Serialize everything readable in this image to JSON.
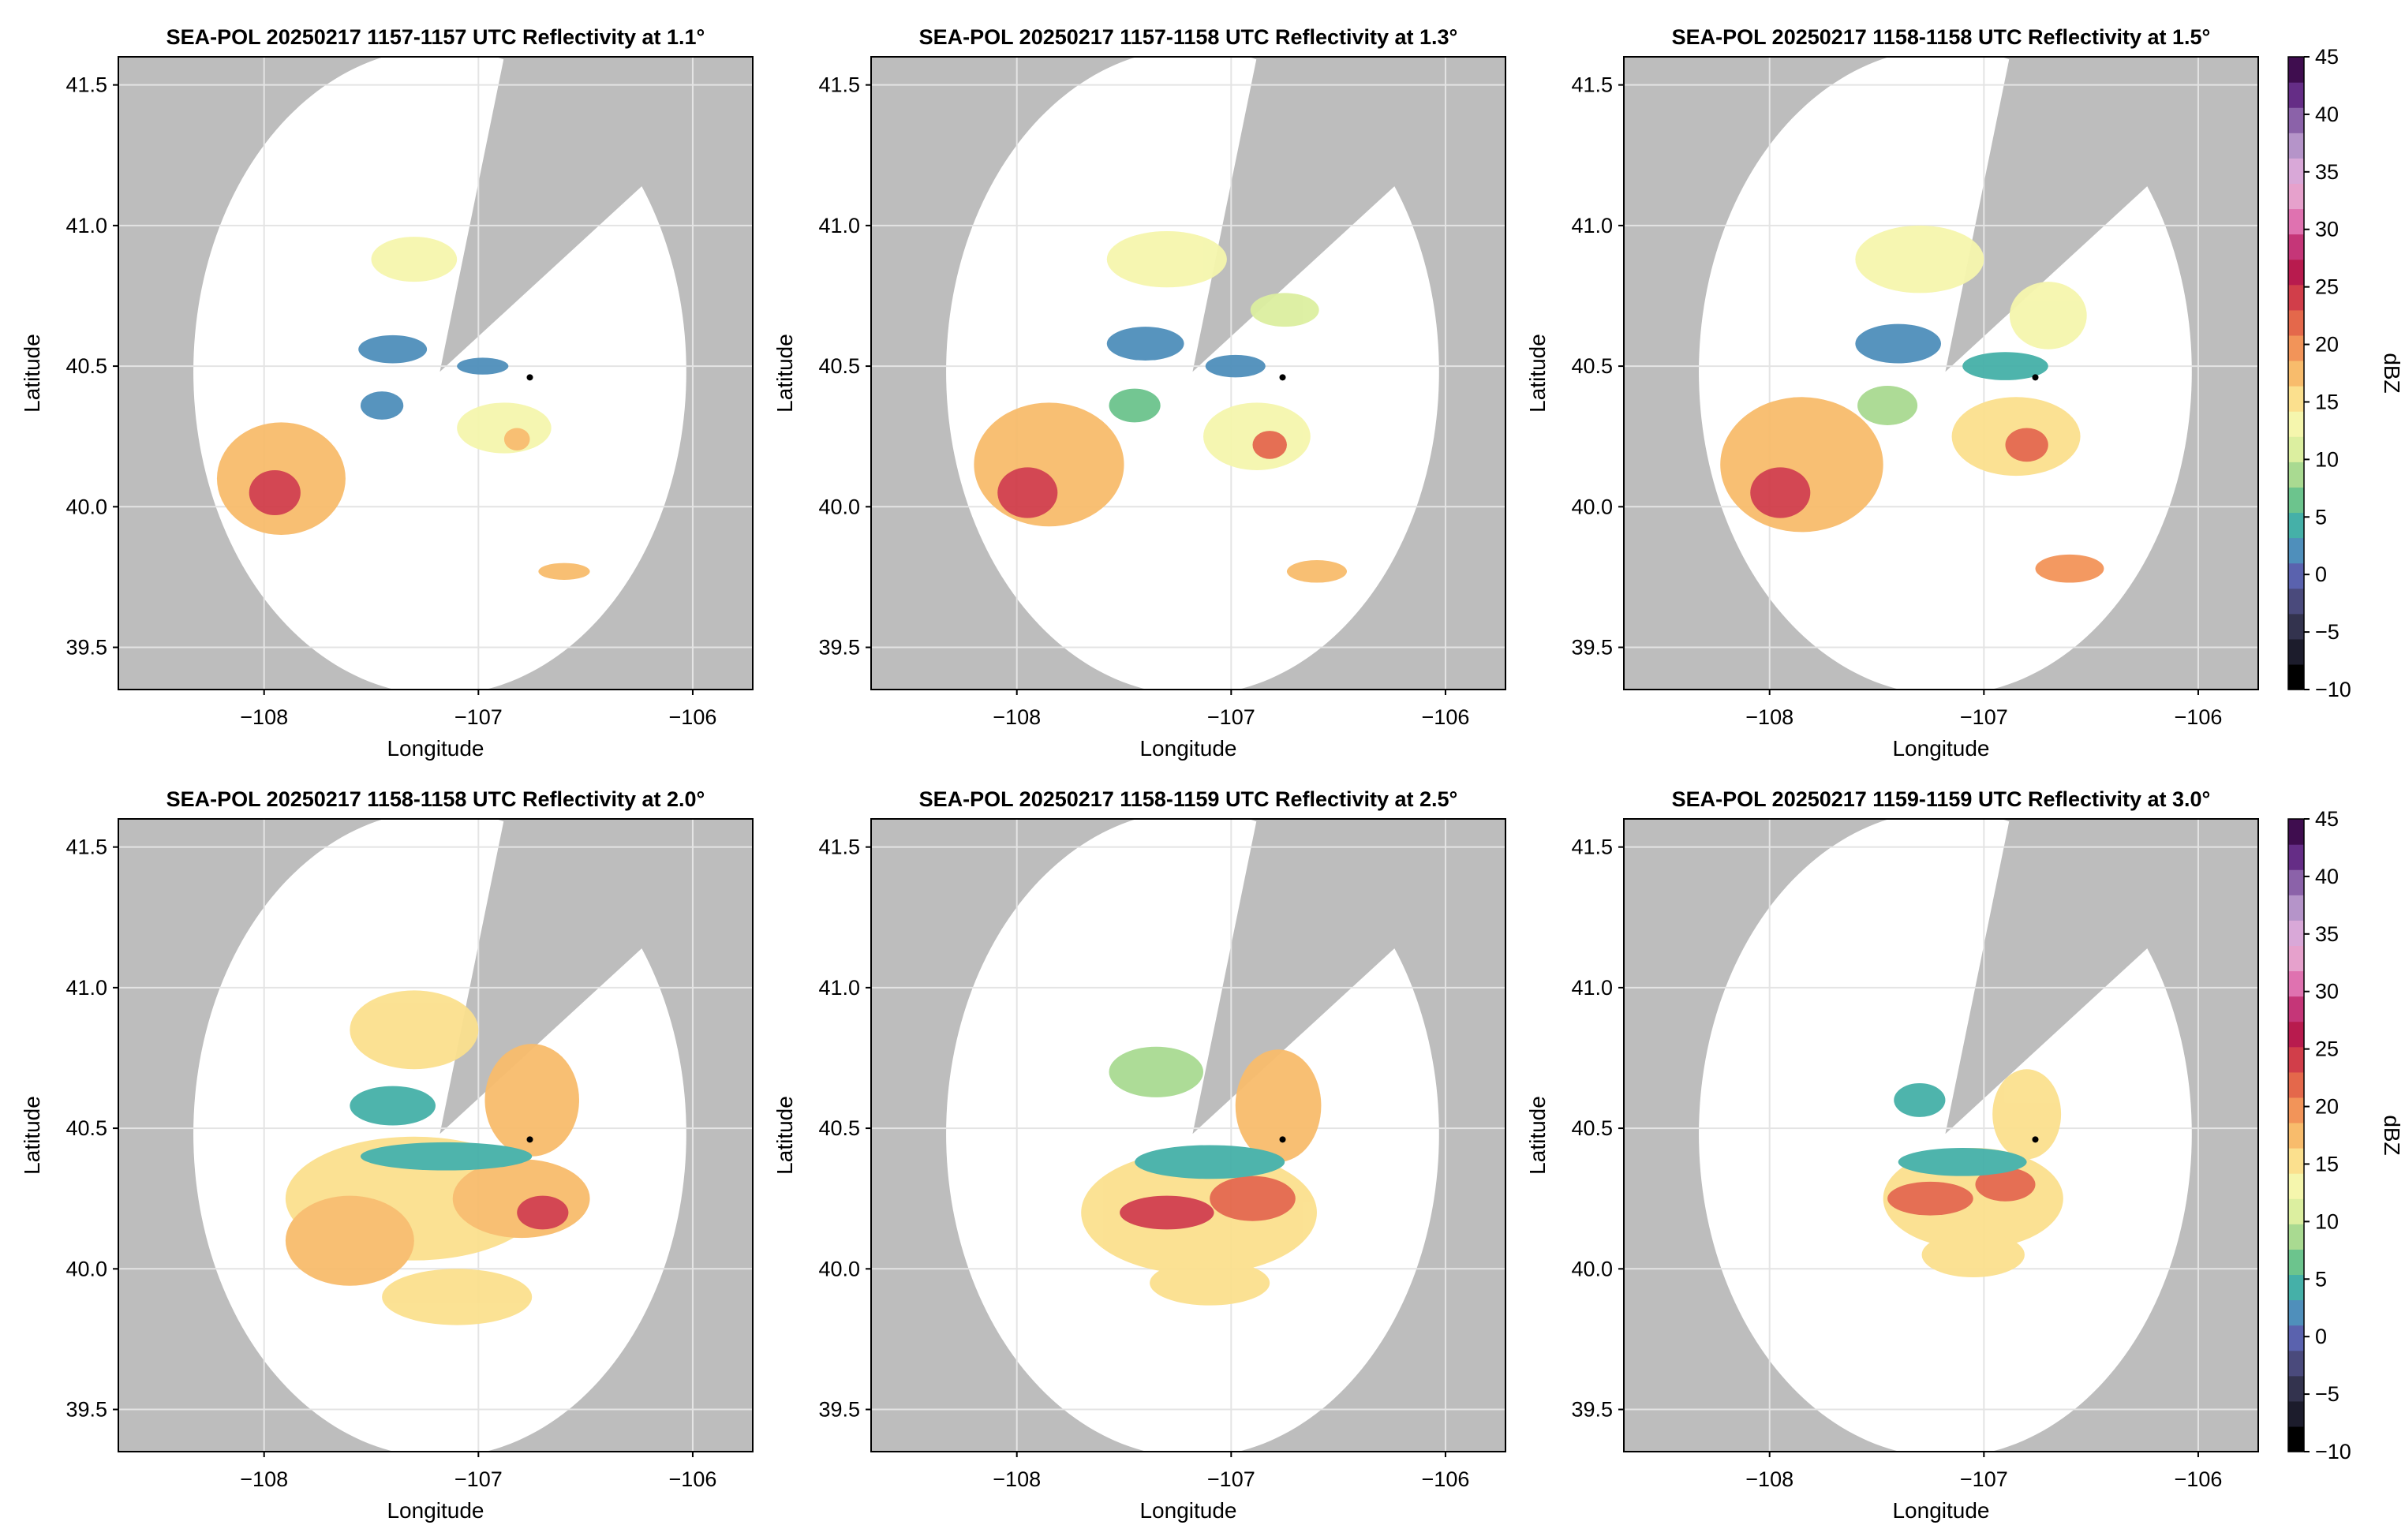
{
  "chart_data": [
    {
      "type": "heatmap",
      "title": "SEA-POL 20250217 1157-1157 UTC Reflectivity at 1.1°",
      "xlabel": "Longitude",
      "ylabel": "Latitude",
      "xlim": [
        -108.68,
        -105.72
      ],
      "ylim": [
        39.35,
        41.6
      ],
      "xticks": [
        "−108",
        "−107",
        "−106"
      ],
      "xtick_values": [
        -108,
        -107,
        -106
      ],
      "yticks": [
        "39.5",
        "40.0",
        "40.5",
        "41.0",
        "41.5"
      ],
      "ytick_values": [
        39.5,
        40.0,
        40.5,
        41.0,
        41.5
      ],
      "grid": true,
      "radar_center": [
        -107.18,
        40.48
      ],
      "radar_range_deg": 1.15,
      "blocked_sector_deg": [
        15,
        55
      ],
      "marker": [
        -106.76,
        40.46
      ],
      "echoes": [
        {
          "lon": -107.92,
          "lat": 40.1,
          "rx": 0.3,
          "ry": 0.2,
          "dbz": 18
        },
        {
          "lon": -107.95,
          "lat": 40.05,
          "rx": 0.12,
          "ry": 0.08,
          "dbz": 24
        },
        {
          "lon": -106.88,
          "lat": 40.28,
          "rx": 0.22,
          "ry": 0.09,
          "dbz": 12
        },
        {
          "lon": -106.82,
          "lat": 40.24,
          "rx": 0.06,
          "ry": 0.04,
          "dbz": 18
        },
        {
          "lon": -107.4,
          "lat": 40.56,
          "rx": 0.16,
          "ry": 0.05,
          "dbz": 2
        },
        {
          "lon": -107.45,
          "lat": 40.36,
          "rx": 0.1,
          "ry": 0.05,
          "dbz": 3
        },
        {
          "lon": -107.3,
          "lat": 40.88,
          "rx": 0.2,
          "ry": 0.08,
          "dbz": 12
        },
        {
          "lon": -106.6,
          "lat": 39.77,
          "rx": 0.12,
          "ry": 0.03,
          "dbz": 18
        },
        {
          "lon": -106.98,
          "lat": 40.5,
          "rx": 0.12,
          "ry": 0.03,
          "dbz": 2
        }
      ]
    },
    {
      "type": "heatmap",
      "title": "SEA-POL 20250217 1157-1158 UTC Reflectivity at 1.3°",
      "xlabel": "Longitude",
      "ylabel": "Latitude",
      "xlim": [
        -108.68,
        -105.72
      ],
      "ylim": [
        39.35,
        41.6
      ],
      "xticks": [
        "−108",
        "−107",
        "−106"
      ],
      "xtick_values": [
        -108,
        -107,
        -106
      ],
      "yticks": [
        "39.5",
        "40.0",
        "40.5",
        "41.0",
        "41.5"
      ],
      "ytick_values": [
        39.5,
        40.0,
        40.5,
        41.0,
        41.5
      ],
      "grid": true,
      "radar_center": [
        -107.18,
        40.48
      ],
      "radar_range_deg": 1.15,
      "blocked_sector_deg": [
        15,
        55
      ],
      "marker": [
        -106.76,
        40.46
      ],
      "echoes": [
        {
          "lon": -107.85,
          "lat": 40.15,
          "rx": 0.35,
          "ry": 0.22,
          "dbz": 17
        },
        {
          "lon": -107.95,
          "lat": 40.05,
          "rx": 0.14,
          "ry": 0.09,
          "dbz": 24
        },
        {
          "lon": -106.88,
          "lat": 40.25,
          "rx": 0.25,
          "ry": 0.12,
          "dbz": 14
        },
        {
          "lon": -106.82,
          "lat": 40.22,
          "rx": 0.08,
          "ry": 0.05,
          "dbz": 22
        },
        {
          "lon": -107.4,
          "lat": 40.58,
          "rx": 0.18,
          "ry": 0.06,
          "dbz": 3
        },
        {
          "lon": -107.3,
          "lat": 40.88,
          "rx": 0.28,
          "ry": 0.1,
          "dbz": 13
        },
        {
          "lon": -106.75,
          "lat": 40.7,
          "rx": 0.16,
          "ry": 0.06,
          "dbz": 11
        },
        {
          "lon": -106.6,
          "lat": 39.77,
          "rx": 0.14,
          "ry": 0.04,
          "dbz": 18
        },
        {
          "lon": -107.45,
          "lat": 40.36,
          "rx": 0.12,
          "ry": 0.06,
          "dbz": 6
        },
        {
          "lon": -106.98,
          "lat": 40.5,
          "rx": 0.14,
          "ry": 0.04,
          "dbz": 3
        }
      ]
    },
    {
      "type": "heatmap",
      "title": "SEA-POL 20250217 1158-1158 UTC Reflectivity at 1.5°",
      "xlabel": "Longitude",
      "ylabel": "Latitude",
      "xlim": [
        -108.68,
        -105.72
      ],
      "ylim": [
        39.35,
        41.6
      ],
      "xticks": [
        "−108",
        "−107",
        "−106"
      ],
      "xtick_values": [
        -108,
        -107,
        -106
      ],
      "yticks": [
        "39.5",
        "40.0",
        "40.5",
        "41.0",
        "41.5"
      ],
      "ytick_values": [
        39.5,
        40.0,
        40.5,
        41.0,
        41.5
      ],
      "grid": true,
      "radar_center": [
        -107.18,
        40.48
      ],
      "radar_range_deg": 1.15,
      "blocked_sector_deg": [
        15,
        55
      ],
      "marker": [
        -106.76,
        40.46
      ],
      "echoes": [
        {
          "lon": -107.85,
          "lat": 40.15,
          "rx": 0.38,
          "ry": 0.24,
          "dbz": 17
        },
        {
          "lon": -107.95,
          "lat": 40.05,
          "rx": 0.14,
          "ry": 0.09,
          "dbz": 24
        },
        {
          "lon": -106.85,
          "lat": 40.25,
          "rx": 0.3,
          "ry": 0.14,
          "dbz": 15
        },
        {
          "lon": -106.8,
          "lat": 40.22,
          "rx": 0.1,
          "ry": 0.06,
          "dbz": 22
        },
        {
          "lon": -107.4,
          "lat": 40.58,
          "rx": 0.2,
          "ry": 0.07,
          "dbz": 3
        },
        {
          "lon": -107.3,
          "lat": 40.88,
          "rx": 0.3,
          "ry": 0.12,
          "dbz": 14
        },
        {
          "lon": -106.7,
          "lat": 40.68,
          "rx": 0.18,
          "ry": 0.12,
          "dbz": 12
        },
        {
          "lon": -106.9,
          "lat": 40.5,
          "rx": 0.2,
          "ry": 0.05,
          "dbz": 4
        },
        {
          "lon": -106.6,
          "lat": 39.78,
          "rx": 0.16,
          "ry": 0.05,
          "dbz": 20
        },
        {
          "lon": -107.45,
          "lat": 40.36,
          "rx": 0.14,
          "ry": 0.07,
          "dbz": 8
        }
      ]
    },
    {
      "type": "heatmap",
      "title": "SEA-POL 20250217 1158-1158 UTC Reflectivity at 2.0°",
      "xlabel": "Longitude",
      "ylabel": "Latitude",
      "xlim": [
        -108.68,
        -105.72
      ],
      "ylim": [
        39.35,
        41.6
      ],
      "xticks": [
        "−108",
        "−107",
        "−106"
      ],
      "xtick_values": [
        -108,
        -107,
        -106
      ],
      "yticks": [
        "39.5",
        "40.0",
        "40.5",
        "41.0",
        "41.5"
      ],
      "ytick_values": [
        39.5,
        40.0,
        40.5,
        41.0,
        41.5
      ],
      "grid": true,
      "radar_center": [
        -107.18,
        40.48
      ],
      "radar_range_deg": 1.15,
      "blocked_sector_deg": [
        15,
        55
      ],
      "marker": [
        -106.76,
        40.46
      ],
      "echoes": [
        {
          "lon": -107.3,
          "lat": 40.25,
          "rx": 0.6,
          "ry": 0.22,
          "dbz": 15
        },
        {
          "lon": -107.6,
          "lat": 40.1,
          "rx": 0.3,
          "ry": 0.16,
          "dbz": 17
        },
        {
          "lon": -106.8,
          "lat": 40.25,
          "rx": 0.32,
          "ry": 0.14,
          "dbz": 18
        },
        {
          "lon": -106.7,
          "lat": 40.2,
          "rx": 0.12,
          "ry": 0.06,
          "dbz": 25
        },
        {
          "lon": -107.3,
          "lat": 40.85,
          "rx": 0.3,
          "ry": 0.14,
          "dbz": 15
        },
        {
          "lon": -106.75,
          "lat": 40.6,
          "rx": 0.22,
          "ry": 0.2,
          "dbz": 17
        },
        {
          "lon": -107.15,
          "lat": 40.4,
          "rx": 0.4,
          "ry": 0.05,
          "dbz": 4
        },
        {
          "lon": -107.4,
          "lat": 40.58,
          "rx": 0.2,
          "ry": 0.07,
          "dbz": 5
        },
        {
          "lon": -107.1,
          "lat": 39.9,
          "rx": 0.35,
          "ry": 0.1,
          "dbz": 16
        }
      ]
    },
    {
      "type": "heatmap",
      "title": "SEA-POL 20250217 1158-1159 UTC Reflectivity at 2.5°",
      "xlabel": "Longitude",
      "ylabel": "Latitude",
      "xlim": [
        -108.68,
        -105.72
      ],
      "ylim": [
        39.35,
        41.6
      ],
      "xticks": [
        "−108",
        "−107",
        "−106"
      ],
      "xtick_values": [
        -108,
        -107,
        -106
      ],
      "yticks": [
        "39.5",
        "40.0",
        "40.5",
        "41.0",
        "41.5"
      ],
      "ytick_values": [
        39.5,
        40.0,
        40.5,
        41.0,
        41.5
      ],
      "grid": true,
      "radar_center": [
        -107.18,
        40.48
      ],
      "radar_range_deg": 1.15,
      "blocked_sector_deg": [
        15,
        55
      ],
      "marker": [
        -106.76,
        40.46
      ],
      "echoes": [
        {
          "lon": -107.15,
          "lat": 40.2,
          "rx": 0.55,
          "ry": 0.22,
          "dbz": 16
        },
        {
          "lon": -107.3,
          "lat": 40.2,
          "rx": 0.22,
          "ry": 0.06,
          "dbz": 24
        },
        {
          "lon": -106.9,
          "lat": 40.25,
          "rx": 0.2,
          "ry": 0.08,
          "dbz": 22
        },
        {
          "lon": -106.78,
          "lat": 40.58,
          "rx": 0.2,
          "ry": 0.2,
          "dbz": 17
        },
        {
          "lon": -107.35,
          "lat": 40.7,
          "rx": 0.22,
          "ry": 0.09,
          "dbz": 9
        },
        {
          "lon": -107.1,
          "lat": 40.38,
          "rx": 0.35,
          "ry": 0.06,
          "dbz": 5
        },
        {
          "lon": -107.1,
          "lat": 39.95,
          "rx": 0.28,
          "ry": 0.08,
          "dbz": 16
        }
      ]
    },
    {
      "type": "heatmap",
      "title": "SEA-POL 20250217 1159-1159 UTC Reflectivity at 3.0°",
      "xlabel": "Longitude",
      "ylabel": "Latitude",
      "xlim": [
        -108.68,
        -105.72
      ],
      "ylim": [
        39.35,
        41.6
      ],
      "xticks": [
        "−108",
        "−107",
        "−106"
      ],
      "xtick_values": [
        -108,
        -107,
        -106
      ],
      "yticks": [
        "39.5",
        "40.0",
        "40.5",
        "41.0",
        "41.5"
      ],
      "ytick_values": [
        39.5,
        40.0,
        40.5,
        41.0,
        41.5
      ],
      "grid": true,
      "radar_center": [
        -107.18,
        40.48
      ],
      "radar_range_deg": 1.15,
      "blocked_sector_deg": [
        15,
        55
      ],
      "marker": [
        -106.76,
        40.46
      ],
      "echoes": [
        {
          "lon": -107.05,
          "lat": 40.25,
          "rx": 0.42,
          "ry": 0.18,
          "dbz": 16
        },
        {
          "lon": -107.25,
          "lat": 40.25,
          "rx": 0.2,
          "ry": 0.06,
          "dbz": 22
        },
        {
          "lon": -106.9,
          "lat": 40.3,
          "rx": 0.14,
          "ry": 0.06,
          "dbz": 22
        },
        {
          "lon": -106.8,
          "lat": 40.55,
          "rx": 0.16,
          "ry": 0.16,
          "dbz": 16
        },
        {
          "lon": -107.3,
          "lat": 40.6,
          "rx": 0.12,
          "ry": 0.06,
          "dbz": 5
        },
        {
          "lon": -107.1,
          "lat": 40.38,
          "rx": 0.3,
          "ry": 0.05,
          "dbz": 5
        },
        {
          "lon": -107.05,
          "lat": 40.05,
          "rx": 0.24,
          "ry": 0.08,
          "dbz": 16
        }
      ]
    }
  ],
  "colorbar": {
    "label": "dBZ",
    "ticks": [
      "45",
      "40",
      "35",
      "30",
      "25",
      "20",
      "15",
      "10",
      "5",
      "0",
      "−5",
      "−10"
    ],
    "tick_values": [
      45,
      40,
      35,
      30,
      25,
      20,
      15,
      10,
      5,
      0,
      -5,
      -10
    ],
    "vmin": -10,
    "vmax": 45,
    "colors": [
      "#000000",
      "#1c1c2c",
      "#33334e",
      "#4a4a7c",
      "#5a62ae",
      "#4f8fbb",
      "#45b0a8",
      "#6cc48d",
      "#a9da91",
      "#dcefa0",
      "#f5f6ad",
      "#fbe08e",
      "#f8bc6c",
      "#f29459",
      "#e4684b",
      "#d13e4a",
      "#b81b4e",
      "#c53678",
      "#df72b0",
      "#e6a1cc",
      "#d9a8d8",
      "#b594c9",
      "#8b62a9",
      "#652d86",
      "#3f0d4f"
    ]
  },
  "colors": {
    "outside_range": "#bdbdbd",
    "background": "#ffffff",
    "grid": "#e4e4e4"
  }
}
